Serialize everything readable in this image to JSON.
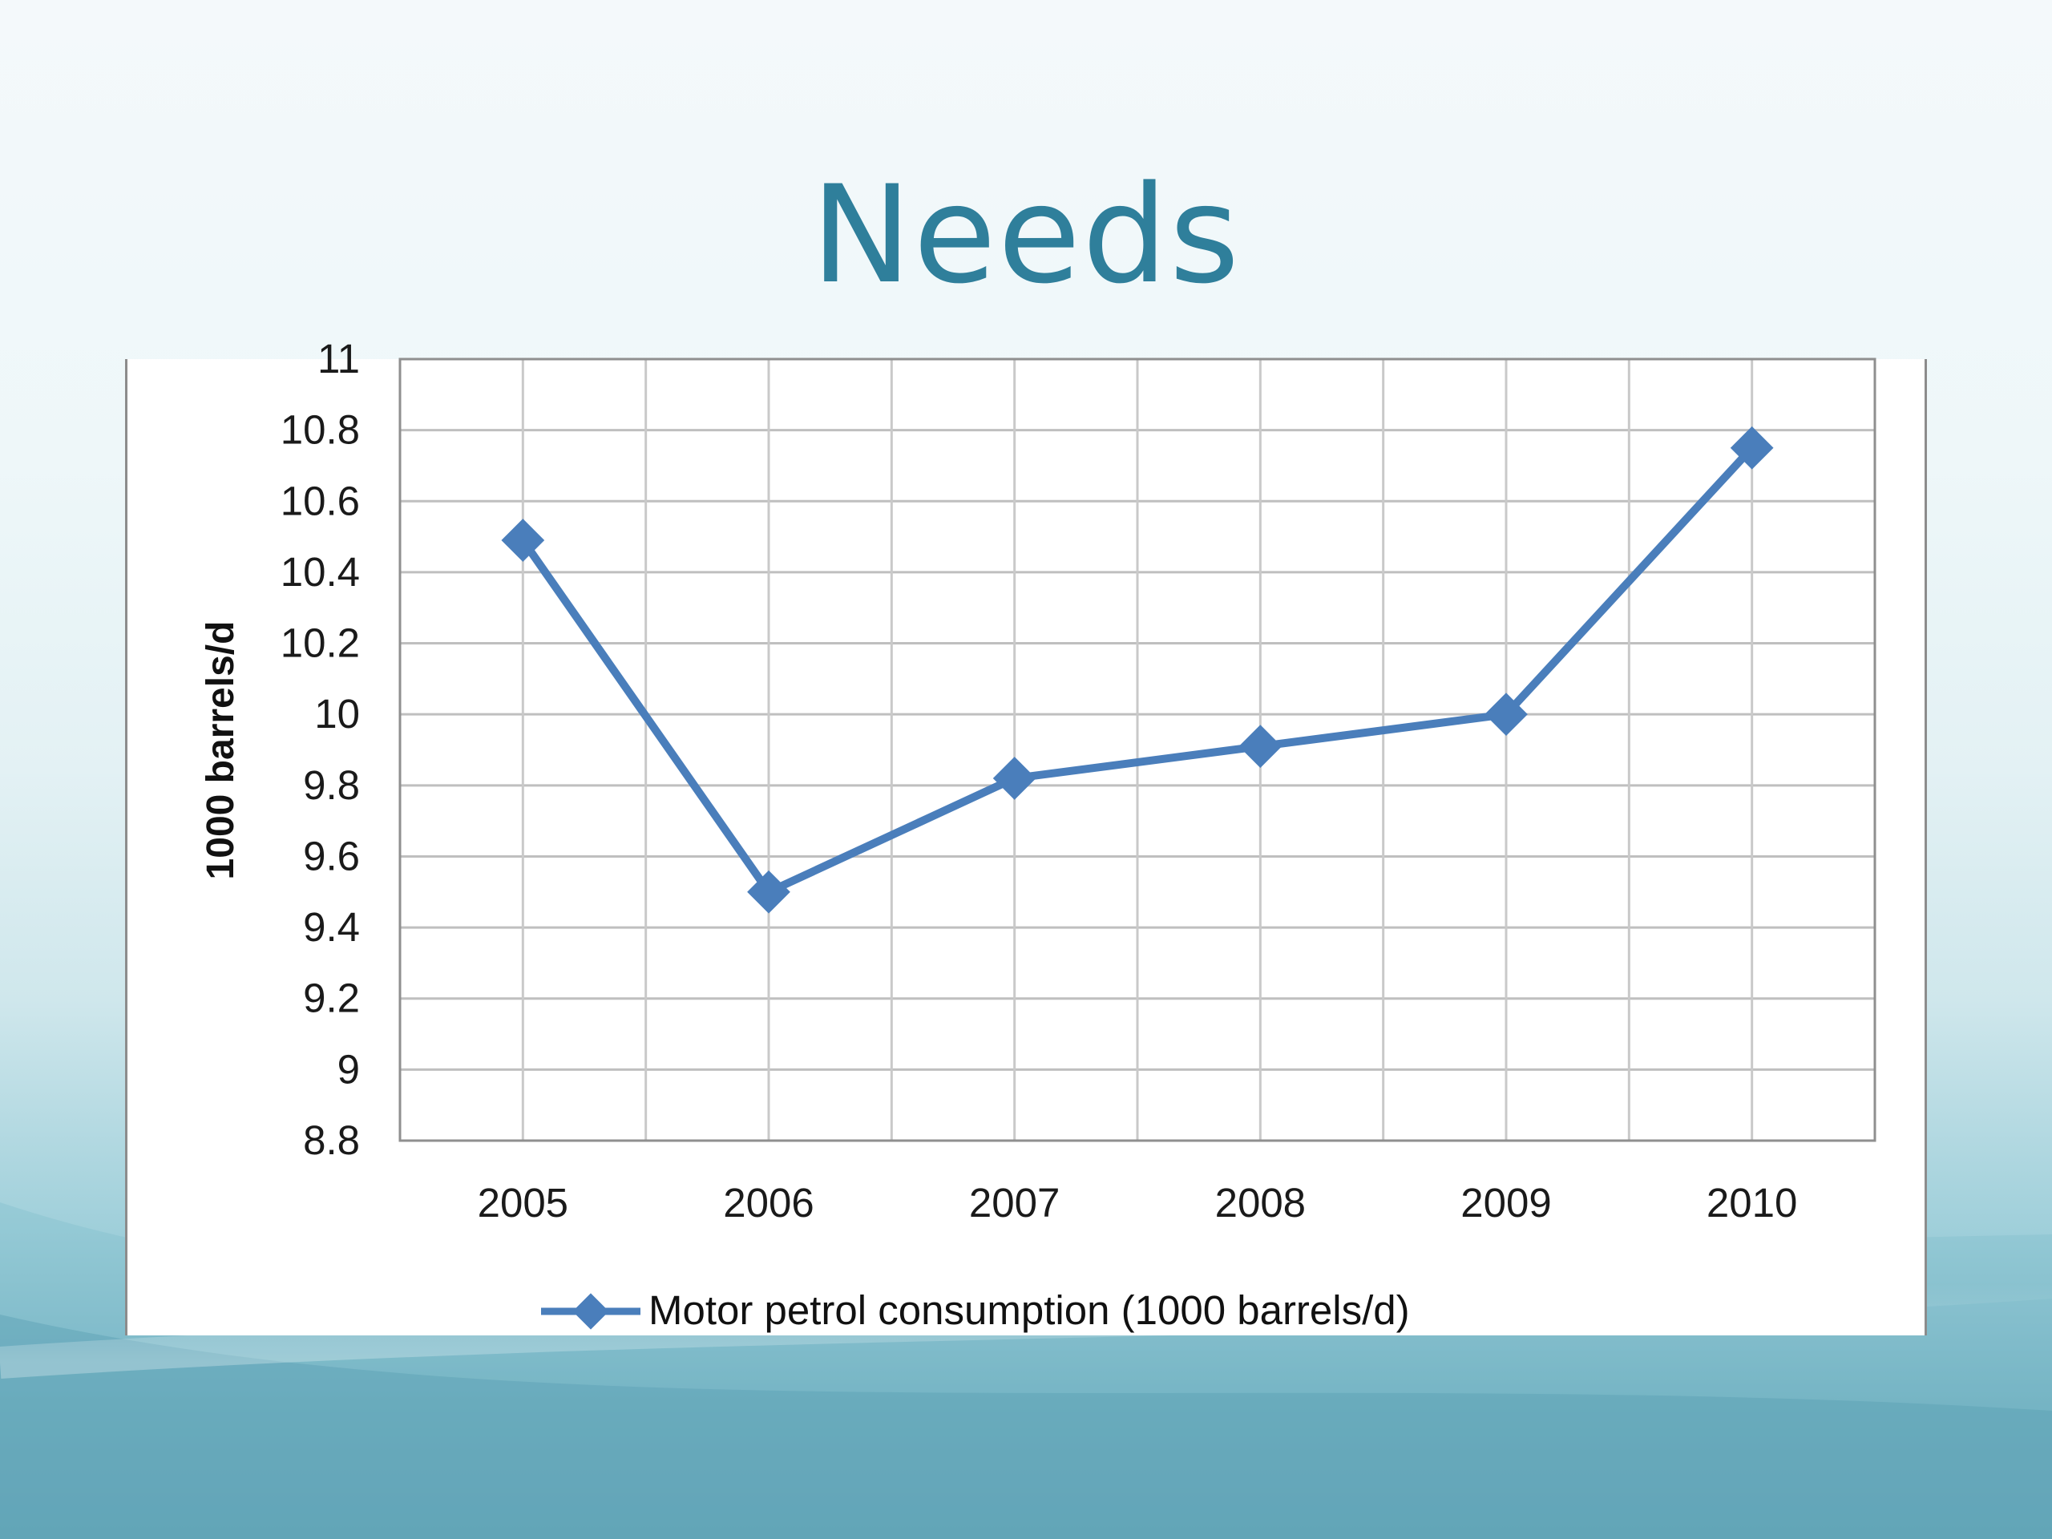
{
  "slide": {
    "title": "Needs"
  },
  "colors": {
    "title": "#2f7f9b",
    "series": "#4a7ebb",
    "grid": "#bfbfbf",
    "axis_text": "#1a1a1a"
  },
  "chart_data": {
    "type": "line",
    "title": "",
    "xlabel": "",
    "ylabel": "1000 barrels/d",
    "categories": [
      "2005",
      "2006",
      "2007",
      "2008",
      "2009",
      "2010"
    ],
    "series": [
      {
        "name": "Motor petrol consumption (1000 barrels/d)",
        "values": [
          10.49,
          9.5,
          9.82,
          9.91,
          10.0,
          10.75
        ],
        "marker": "diamond"
      }
    ],
    "ylim": [
      8.8,
      11
    ],
    "yticks": [
      "8.8",
      "9",
      "9.2",
      "9.4",
      "9.6",
      "9.8",
      "10",
      "10.2",
      "10.4",
      "10.6",
      "10.8",
      "11"
    ],
    "grid": true,
    "legend_position": "bottom"
  }
}
